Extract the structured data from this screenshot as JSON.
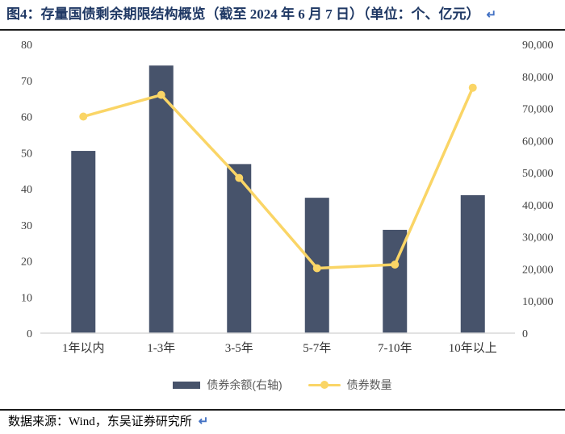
{
  "title": {
    "text": "图4：存量国债剩余期限结构概览（截至 2024 年 6 月 7 日）（单位：个、亿元）",
    "return_mark": "↵"
  },
  "footer": {
    "text": "数据来源：Wind，东吴证券研究所",
    "return_mark": "↵"
  },
  "legend": [
    {
      "label": "债券余额(右轴)",
      "type": "bar",
      "color": "#47536B"
    },
    {
      "label": "债券数量",
      "type": "line",
      "color": "#FAD566"
    }
  ],
  "colors": {
    "bar": "#47536B",
    "line": "#FAD566",
    "title": "#1F3864",
    "return_mark": "#4472C4",
    "axis_line": "#D9D9D9",
    "tick_text": "#404040",
    "category_text": "#333333",
    "legend_text": "#595959"
  },
  "chart_data": {
    "type": "bar",
    "subtype": "bar-line-combo",
    "title": "存量国债剩余期限结构概览（截至 2024 年 6 月 7 日）",
    "units": "个、亿元",
    "categories": [
      "1年以内",
      "1-3年",
      "3-5年",
      "5-7年",
      "7-10年",
      "10年以上"
    ],
    "series": [
      {
        "name": "债券余额(右轴)",
        "type": "bar",
        "axis": "right",
        "unit": "亿元",
        "color": "#47536B",
        "values": [
          56800,
          83400,
          52700,
          42200,
          32200,
          43000
        ]
      },
      {
        "name": "债券数量",
        "type": "line",
        "axis": "left",
        "unit": "个",
        "color": "#FAD566",
        "values": [
          60,
          66,
          43,
          18,
          19,
          68
        ]
      }
    ],
    "left_axis": {
      "min": 0,
      "max": 80,
      "step": 10,
      "ticks": [
        "0",
        "10",
        "20",
        "30",
        "40",
        "50",
        "60",
        "70",
        "80"
      ]
    },
    "right_axis": {
      "min": 0,
      "max": 90000,
      "step": 10000,
      "ticks": [
        "0",
        "10,000",
        "20,000",
        "30,000",
        "40,000",
        "50,000",
        "60,000",
        "70,000",
        "80,000",
        "90,000"
      ]
    },
    "grid": false,
    "legend_position": "bottom"
  }
}
